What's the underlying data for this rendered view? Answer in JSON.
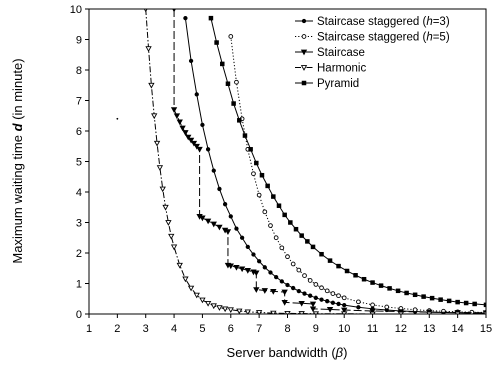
{
  "chart_data": {
    "type": "line",
    "xlabel_prefix": "Server bandwidth (",
    "xlabel_symbol": "β",
    "xlabel_suffix": ")",
    "ylabel_prefix": "Maximum waiting time ",
    "ylabel_symbol": "d",
    "ylabel_suffix": " (in minute)",
    "xlim": [
      1,
      15
    ],
    "ylim": [
      0,
      10
    ],
    "x_ticks": [
      "1",
      "2",
      "3",
      "4",
      "5",
      "6",
      "7",
      "8",
      "9",
      "10",
      "11",
      "12",
      "13",
      "14",
      "15"
    ],
    "y_ticks": [
      "0",
      "1",
      "2",
      "3",
      "4",
      "5",
      "6",
      "7",
      "8",
      "9",
      "10"
    ],
    "grid": false,
    "legend_position": "top-right",
    "series": [
      {
        "name_prefix": "Staircase staggered (",
        "name_var": "h",
        "name_suffix": "=3)",
        "marker": "filled-circle",
        "line": "solid",
        "color": "#000000",
        "x": [
          4.4,
          4.6,
          4.8,
          5.0,
          5.2,
          5.4,
          5.6,
          5.8,
          6.0,
          6.2,
          6.4,
          6.6,
          6.8,
          7.0,
          7.2,
          7.4,
          7.6,
          7.8,
          8.0,
          8.2,
          8.4,
          8.6,
          8.8,
          9.0,
          9.2,
          9.4,
          9.6,
          9.8,
          10.0,
          10.5,
          11.0,
          11.5,
          12.0,
          12.5,
          13.0,
          13.5,
          14.0,
          14.5,
          15.0
        ],
        "y": [
          9.7,
          8.3,
          7.2,
          6.2,
          5.4,
          4.7,
          4.1,
          3.6,
          3.2,
          2.8,
          2.5,
          2.2,
          1.95,
          1.73,
          1.53,
          1.36,
          1.21,
          1.07,
          0.95,
          0.85,
          0.75,
          0.67,
          0.6,
          0.53,
          0.47,
          0.42,
          0.37,
          0.33,
          0.29,
          0.22,
          0.17,
          0.13,
          0.1,
          0.08,
          0.06,
          0.05,
          0.04,
          0.03,
          0.02
        ]
      },
      {
        "name_prefix": "Staircase staggered (",
        "name_var": "h",
        "name_suffix": "=5)",
        "marker": "open-circle",
        "line": "dotted",
        "color": "#000000",
        "x": [
          6.0,
          6.2,
          6.4,
          6.6,
          6.8,
          7.0,
          7.2,
          7.4,
          7.6,
          7.8,
          8.0,
          8.2,
          8.4,
          8.6,
          8.8,
          9.0,
          9.2,
          9.4,
          9.6,
          9.8,
          10.0,
          10.5,
          11.0,
          11.5,
          12.0,
          12.5,
          13.0,
          13.5,
          14.0,
          14.5,
          15.0
        ],
        "y": [
          9.1,
          7.6,
          6.4,
          5.4,
          4.6,
          3.9,
          3.35,
          2.9,
          2.5,
          2.17,
          1.88,
          1.64,
          1.44,
          1.26,
          1.1,
          0.97,
          0.86,
          0.76,
          0.67,
          0.6,
          0.53,
          0.4,
          0.3,
          0.23,
          0.18,
          0.14,
          0.11,
          0.09,
          0.07,
          0.06,
          0.05
        ]
      },
      {
        "name": "Staircase",
        "marker": "filled-triangle-down",
        "line": "long-dash",
        "color": "#000000",
        "x": [
          4.0,
          4.0,
          4.1,
          4.2,
          4.3,
          4.4,
          4.5,
          4.6,
          4.7,
          4.8,
          4.9,
          4.9,
          5.0,
          5.2,
          5.4,
          5.6,
          5.8,
          5.9,
          5.9,
          6.0,
          6.2,
          6.4,
          6.6,
          6.8,
          6.9,
          6.9,
          7.2,
          7.5,
          7.9,
          7.9,
          8.5,
          8.9,
          8.9,
          9.5,
          10.0,
          11.0,
          12.0,
          13.0,
          14.0,
          15.0
        ],
        "y": [
          10.0,
          6.7,
          6.5,
          6.3,
          6.1,
          5.95,
          5.8,
          5.7,
          5.6,
          5.5,
          5.4,
          3.2,
          3.15,
          3.05,
          2.95,
          2.85,
          2.75,
          2.7,
          1.6,
          1.58,
          1.53,
          1.48,
          1.43,
          1.38,
          1.35,
          0.8,
          0.77,
          0.74,
          0.72,
          0.38,
          0.35,
          0.33,
          0.17,
          0.15,
          0.13,
          0.1,
          0.08,
          0.06,
          0.05,
          0.04
        ]
      },
      {
        "name": "Harmonic",
        "marker": "open-triangle-down",
        "line": "dash-dot",
        "color": "#000000",
        "x": [
          3.0,
          3.1,
          3.2,
          3.3,
          3.4,
          3.5,
          3.6,
          3.7,
          3.8,
          3.9,
          4.0,
          4.2,
          4.4,
          4.6,
          4.8,
          5.0,
          5.2,
          5.4,
          5.6,
          5.8,
          6.0,
          6.3,
          6.6,
          7.0,
          7.5,
          8.0,
          8.5,
          9.0,
          10.0,
          11.0,
          12.0,
          13.0,
          14.0,
          15.0
        ],
        "y": [
          10.0,
          8.7,
          7.5,
          6.5,
          5.6,
          4.8,
          4.1,
          3.5,
          3.0,
          2.55,
          2.2,
          1.6,
          1.15,
          0.85,
          0.62,
          0.46,
          0.35,
          0.27,
          0.21,
          0.17,
          0.14,
          0.1,
          0.07,
          0.05,
          0.03,
          0.02,
          0.015,
          0.01,
          0.01,
          0.0,
          0.0,
          0.0,
          0.0,
          0.0
        ]
      },
      {
        "name": "Pyramid",
        "marker": "filled-square",
        "line": "solid",
        "color": "#000000",
        "x": [
          5.3,
          5.5,
          5.7,
          5.9,
          6.1,
          6.3,
          6.5,
          6.7,
          6.9,
          7.1,
          7.3,
          7.5,
          7.7,
          7.9,
          8.1,
          8.3,
          8.5,
          8.7,
          8.9,
          9.2,
          9.5,
          9.8,
          10.1,
          10.4,
          10.7,
          11.0,
          11.3,
          11.6,
          11.9,
          12.2,
          12.5,
          12.8,
          13.1,
          13.4,
          13.7,
          14.0,
          14.3,
          14.6,
          15.0
        ],
        "y": [
          9.7,
          8.9,
          8.2,
          7.55,
          6.9,
          6.35,
          5.85,
          5.4,
          4.95,
          4.55,
          4.2,
          3.85,
          3.55,
          3.25,
          3.0,
          2.78,
          2.57,
          2.38,
          2.2,
          1.96,
          1.75,
          1.57,
          1.41,
          1.27,
          1.14,
          1.03,
          0.93,
          0.84,
          0.76,
          0.69,
          0.63,
          0.57,
          0.52,
          0.47,
          0.43,
          0.39,
          0.36,
          0.33,
          0.3
        ]
      }
    ],
    "stray_points": [
      {
        "x": 2.0,
        "y": 6.4
      }
    ]
  }
}
